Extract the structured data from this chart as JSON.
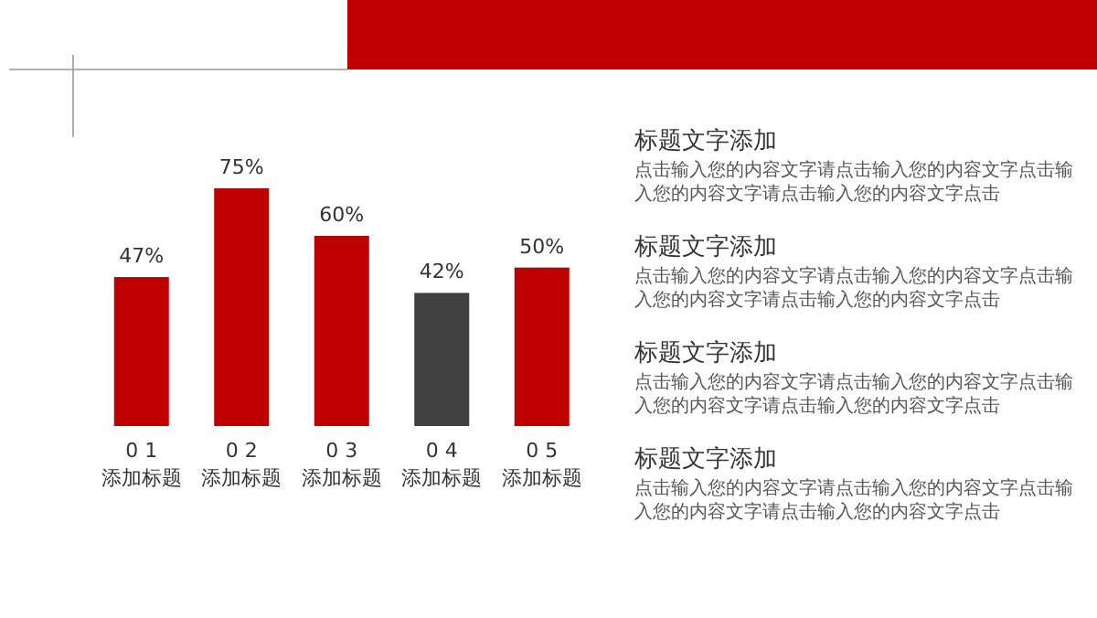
{
  "chart_data": [
    {
      "type": "bar",
      "categories": [
        "0 1\n添加标题",
        "0 2\n添加标题",
        "0 3\n添加标题",
        "0 4\n添加标题",
        "0 5\n添加标题"
      ],
      "values": [
        47,
        75,
        60,
        42,
        50
      ],
      "value_labels": [
        "47%",
        "75%",
        "60%",
        "42%",
        "50%"
      ],
      "colors": [
        "#c00000",
        "#c00000",
        "#c00000",
        "#404040",
        "#c00000"
      ]
    },
    {
      "type": "other",
      "annotations": [
        "标题文字添加",
        "点击输入您的内容文字请点击输入您的内容文字点击输入您的内容文字请点击输入您的内容文字点击",
        "标题文字添加",
        "点击输入您的内容文字请点击输入您的内容文字点击输入您的内容文字请点击输入您的内容文字点击",
        "标题文字添加",
        "点击输入您的内容文字请点击输入您的内容文字点击输入您的内容文字请点击输入您的内容文字点击",
        "标题文字添加",
        "点击输入您的内容文字请点击输入您的内容文字点击输入您的内容文字请点击输入您的内容文字点击"
      ]
    }
  ]
}
